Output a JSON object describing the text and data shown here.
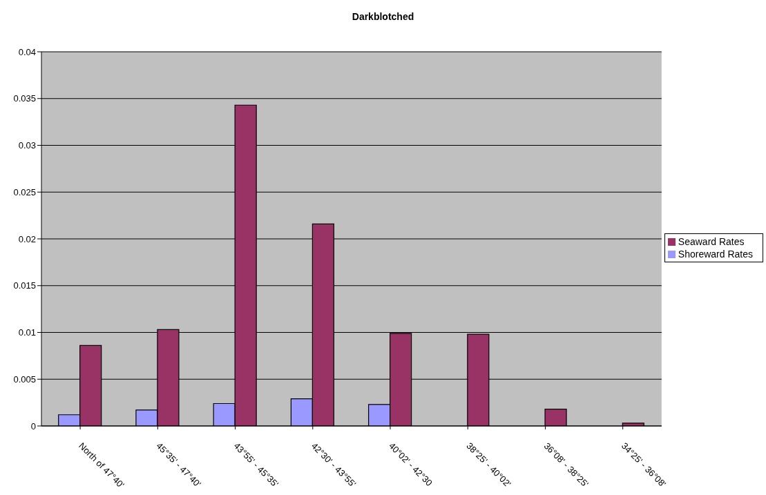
{
  "chart_data": {
    "type": "bar",
    "title": "Darkblotched",
    "categories": [
      "North of 47°40'",
      "45°35' - 47°40'",
      "43°55' - 45°35'",
      "42°30' - 43°55'",
      "40°02' - 42°30",
      "38°25' - 40°02'",
      "36°08' - 38°25'",
      "34°25' - 36°08'"
    ],
    "series": [
      {
        "name": "Shoreward Rates",
        "color": "#9999ff",
        "values": [
          0.0012,
          0.0017,
          0.0024,
          0.0029,
          0.0023,
          0,
          0,
          0
        ]
      },
      {
        "name": "Seaward Rates",
        "color": "#993366",
        "values": [
          0.0086,
          0.0103,
          0.0343,
          0.0216,
          0.0099,
          0.0098,
          0.0018,
          0.0003
        ]
      }
    ],
    "ylim": [
      0,
      0.04
    ],
    "yticks": [
      0,
      0.005,
      0.01,
      0.015,
      0.02,
      0.025,
      0.03,
      0.035,
      0.04
    ],
    "grid": "y",
    "legend": "right"
  }
}
